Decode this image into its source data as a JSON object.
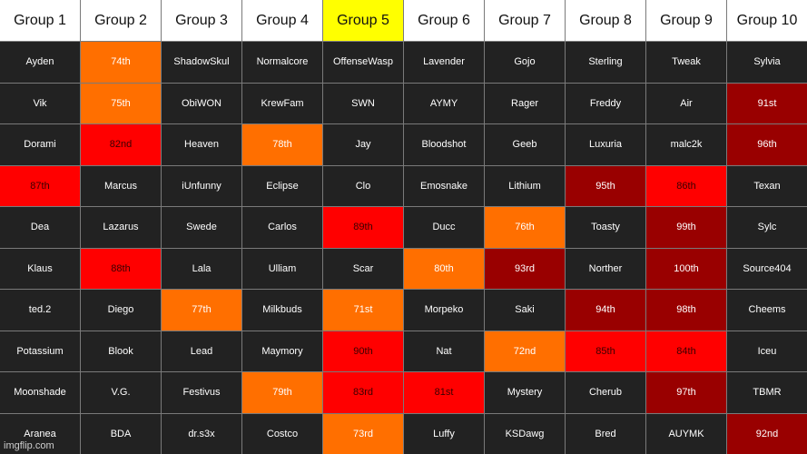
{
  "headers": [
    "Group 1",
    "Group 2",
    "Group 3",
    "Group 4",
    "Group 5",
    "Group 6",
    "Group 7",
    "Group 8",
    "Group 9",
    "Group 10"
  ],
  "highlight_header_index": 4,
  "highlight_header_color": "#ffff00",
  "colors": {
    "default": "#222222",
    "orange": "#ff6f00",
    "red": "#ff0000",
    "dark_red": "#990000"
  },
  "rows": [
    [
      {
        "t": "Ayden"
      },
      {
        "t": "74th",
        "c": "orange"
      },
      {
        "t": "ShadowSkul"
      },
      {
        "t": "Normalcore"
      },
      {
        "t": "OffenseWasp"
      },
      {
        "t": "Lavender"
      },
      {
        "t": "Gojo"
      },
      {
        "t": "Sterling"
      },
      {
        "t": "Tweak"
      },
      {
        "t": "Sylvia"
      }
    ],
    [
      {
        "t": "Vik"
      },
      {
        "t": "75th",
        "c": "orange"
      },
      {
        "t": "ObiWON"
      },
      {
        "t": "KrewFam"
      },
      {
        "t": "SWN"
      },
      {
        "t": "AYMY"
      },
      {
        "t": "Rager"
      },
      {
        "t": "Freddy"
      },
      {
        "t": "Air"
      },
      {
        "t": "91st",
        "c": "dark_red"
      }
    ],
    [
      {
        "t": "Dorami"
      },
      {
        "t": "82nd",
        "c": "red"
      },
      {
        "t": "Heaven"
      },
      {
        "t": "78th",
        "c": "orange"
      },
      {
        "t": "Jay"
      },
      {
        "t": "Bloodshot"
      },
      {
        "t": "Geeb"
      },
      {
        "t": "Luxuria"
      },
      {
        "t": "malc2k"
      },
      {
        "t": "96th",
        "c": "dark_red"
      }
    ],
    [
      {
        "t": "87th",
        "c": "red"
      },
      {
        "t": "Marcus"
      },
      {
        "t": "iUnfunny"
      },
      {
        "t": "Eclipse"
      },
      {
        "t": "Clo"
      },
      {
        "t": "Emosnake"
      },
      {
        "t": "Lithium"
      },
      {
        "t": "95th",
        "c": "dark_red"
      },
      {
        "t": "86th",
        "c": "red"
      },
      {
        "t": "Texan"
      }
    ],
    [
      {
        "t": "Dea"
      },
      {
        "t": "Lazarus"
      },
      {
        "t": "Swede"
      },
      {
        "t": "Carlos"
      },
      {
        "t": "89th",
        "c": "red"
      },
      {
        "t": "Ducc"
      },
      {
        "t": "76th",
        "c": "orange"
      },
      {
        "t": "Toasty"
      },
      {
        "t": "99th",
        "c": "dark_red"
      },
      {
        "t": "Sylc"
      }
    ],
    [
      {
        "t": "Klaus"
      },
      {
        "t": "88th",
        "c": "red"
      },
      {
        "t": "Lala"
      },
      {
        "t": "Ulliam"
      },
      {
        "t": "Scar"
      },
      {
        "t": "80th",
        "c": "orange"
      },
      {
        "t": "93rd",
        "c": "dark_red"
      },
      {
        "t": "Norther"
      },
      {
        "t": "100th",
        "c": "dark_red"
      },
      {
        "t": "Source404"
      }
    ],
    [
      {
        "t": "ted.2"
      },
      {
        "t": "Diego"
      },
      {
        "t": "77th",
        "c": "orange"
      },
      {
        "t": "Milkbuds"
      },
      {
        "t": "71st",
        "c": "orange"
      },
      {
        "t": "Morpeko"
      },
      {
        "t": "Saki"
      },
      {
        "t": "94th",
        "c": "dark_red"
      },
      {
        "t": "98th",
        "c": "dark_red"
      },
      {
        "t": "Cheems"
      }
    ],
    [
      {
        "t": "Potassium"
      },
      {
        "t": "Blook"
      },
      {
        "t": "Lead"
      },
      {
        "t": "Maymory"
      },
      {
        "t": "90th",
        "c": "red"
      },
      {
        "t": "Nat"
      },
      {
        "t": "72nd",
        "c": "orange"
      },
      {
        "t": "85th",
        "c": "red"
      },
      {
        "t": "84th",
        "c": "red"
      },
      {
        "t": "Iceu"
      }
    ],
    [
      {
        "t": "Moonshade"
      },
      {
        "t": "V.G."
      },
      {
        "t": "Festivus"
      },
      {
        "t": "79th",
        "c": "orange"
      },
      {
        "t": "83rd",
        "c": "red"
      },
      {
        "t": "81st",
        "c": "red"
      },
      {
        "t": "Mystery"
      },
      {
        "t": "Cherub"
      },
      {
        "t": "97th",
        "c": "dark_red"
      },
      {
        "t": "TBMR"
      }
    ],
    [
      {
        "t": "Aranea"
      },
      {
        "t": "BDA"
      },
      {
        "t": "dr.s3x"
      },
      {
        "t": "Costco"
      },
      {
        "t": "73rd",
        "c": "orange"
      },
      {
        "t": "Luffy"
      },
      {
        "t": "KSDawg"
      },
      {
        "t": "Bred"
      },
      {
        "t": "AUYMK"
      },
      {
        "t": "92nd",
        "c": "dark_red"
      }
    ]
  ],
  "watermark": "imgflip.com"
}
